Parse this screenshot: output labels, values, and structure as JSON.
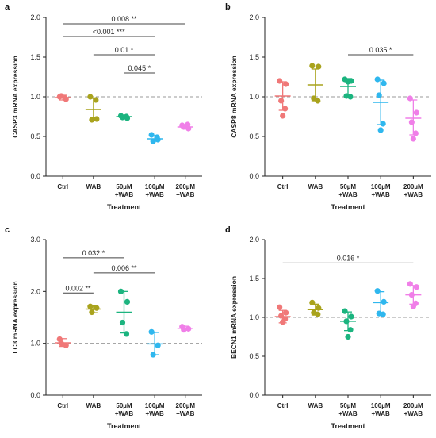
{
  "chart_data": [
    {
      "panel": "a",
      "type": "scatter",
      "ylabel": "CASP3 mRNA expression",
      "xlabel": "Treatment",
      "ylim": [
        0,
        2.0
      ],
      "yticks": [
        "0.0",
        "0.5",
        "1.0",
        "1.5",
        "2.0"
      ],
      "ref_line": 1.0,
      "categories": [
        [
          "Ctrl"
        ],
        [
          "WAB"
        ],
        [
          "50µM",
          "+WAB"
        ],
        [
          "100µM",
          "+WAB"
        ],
        [
          "200µM",
          "+WAB"
        ]
      ],
      "colors": [
        "#f07878",
        "#a9a31d",
        "#1bb47f",
        "#2fb7ee",
        "#f07fe8"
      ],
      "groups": [
        {
          "points": [
            1.0,
            0.97,
            1.01,
            0.98
          ],
          "mean": 0.99,
          "sd_low": 0.96,
          "sd_high": 1.02
        },
        {
          "points": [
            1.0,
            0.72,
            0.71,
            0.96
          ],
          "mean": 0.84,
          "sd_low": 0.7,
          "sd_high": 0.98
        },
        {
          "points": [
            0.76,
            0.73,
            0.74,
            0.75
          ],
          "mean": 0.75,
          "sd_low": 0.73,
          "sd_high": 0.77
        },
        {
          "points": [
            0.52,
            0.46,
            0.44,
            0.49
          ],
          "mean": 0.47,
          "sd_low": 0.44,
          "sd_high": 0.51
        },
        {
          "points": [
            0.64,
            0.6,
            0.62,
            0.65
          ],
          "mean": 0.62,
          "sd_low": 0.6,
          "sd_high": 0.65
        }
      ],
      "comparisons": [
        {
          "from": 0,
          "to": 4,
          "y": 1.92,
          "label": "0.008 **"
        },
        {
          "from": 0,
          "to": 3,
          "y": 1.76,
          "label": "<0.001 ***"
        },
        {
          "from": 1,
          "to": 3,
          "y": 1.53,
          "label": "0.01 *"
        },
        {
          "from": 2,
          "to": 3,
          "y": 1.3,
          "label": "0.045 *"
        }
      ]
    },
    {
      "panel": "b",
      "type": "scatter",
      "ylabel": "CASP8 mRNA expression",
      "xlabel": "Treatment",
      "ylim": [
        0,
        2.0
      ],
      "yticks": [
        "0.0",
        "0.5",
        "1.0",
        "1.5",
        "2.0"
      ],
      "ref_line": 1.0,
      "categories": [
        [
          "Ctrl"
        ],
        [
          "WAB"
        ],
        [
          "50µM",
          "+WAB"
        ],
        [
          "100µM",
          "+WAB"
        ],
        [
          "200µM",
          "+WAB"
        ]
      ],
      "colors": [
        "#f07878",
        "#a9a31d",
        "#1bb47f",
        "#2fb7ee",
        "#f07fe8"
      ],
      "groups": [
        {
          "points": [
            1.2,
            1.16,
            0.95,
            0.85,
            0.76
          ],
          "mean": 1.01,
          "sd_low": 0.83,
          "sd_high": 1.19
        },
        {
          "points": [
            1.39,
            1.38,
            0.98,
            0.95
          ],
          "mean": 1.15,
          "sd_low": 0.95,
          "sd_high": 1.35
        },
        {
          "points": [
            1.22,
            1.2,
            1.01,
            1.0,
            1.19
          ],
          "mean": 1.13,
          "sd_low": 1.02,
          "sd_high": 1.23
        },
        {
          "points": [
            1.22,
            1.17,
            1.02,
            0.66,
            0.58
          ],
          "mean": 0.93,
          "sd_low": 0.65,
          "sd_high": 1.21
        },
        {
          "points": [
            0.98,
            0.8,
            0.68,
            0.54,
            0.47
          ],
          "mean": 0.73,
          "sd_low": 0.52,
          "sd_high": 0.96
        }
      ],
      "comparisons": [
        {
          "from": 2,
          "to": 4,
          "y": 1.53,
          "label": "0.035 *"
        }
      ]
    },
    {
      "panel": "c",
      "type": "scatter",
      "ylabel": "LC3 mRNA expression",
      "xlabel": "Treatment",
      "ylim": [
        0,
        3.0
      ],
      "yticks": [
        "0.0",
        "1.0",
        "2.0",
        "3.0"
      ],
      "ref_line": 1.0,
      "categories": [
        [
          "Ctrl"
        ],
        [
          "WAB"
        ],
        [
          "50µM",
          "+WAB"
        ],
        [
          "100µM",
          "+WAB"
        ],
        [
          "200µM",
          "+WAB"
        ]
      ],
      "colors": [
        "#f07878",
        "#a9a31d",
        "#1bb47f",
        "#2fb7ee",
        "#f07fe8"
      ],
      "groups": [
        {
          "points": [
            1.08,
            0.96,
            1.0
          ],
          "mean": 1.01,
          "sd_low": 0.94,
          "sd_high": 1.09
        },
        {
          "points": [
            1.71,
            1.68,
            1.6
          ],
          "mean": 1.66,
          "sd_low": 1.59,
          "sd_high": 1.72
        },
        {
          "points": [
            2.0,
            1.8,
            1.4,
            1.18
          ],
          "mean": 1.6,
          "sd_low": 1.2,
          "sd_high": 2.0
        },
        {
          "points": [
            1.22,
            0.96,
            0.78
          ],
          "mean": 0.99,
          "sd_low": 0.78,
          "sd_high": 1.21
        },
        {
          "points": [
            1.32,
            1.28,
            1.26
          ],
          "mean": 1.29,
          "sd_low": 1.25,
          "sd_high": 1.33
        }
      ],
      "comparisons": [
        {
          "from": 0,
          "to": 2,
          "y": 2.65,
          "label": "0.032 *"
        },
        {
          "from": 1,
          "to": 3,
          "y": 2.36,
          "label": "0.006 **"
        },
        {
          "from": 0,
          "to": 1,
          "y": 1.97,
          "label": "0.002 **"
        }
      ]
    },
    {
      "panel": "d",
      "type": "scatter",
      "ylabel": "BECN1 mRNA expression",
      "xlabel": "Treatment",
      "ylim": [
        0,
        2.0
      ],
      "yticks": [
        "0.0",
        "0.5",
        "1.0",
        "1.5",
        "2.0"
      ],
      "ref_line": 1.0,
      "categories": [
        [
          "Ctrl"
        ],
        [
          "WAB"
        ],
        [
          "50µM",
          "+WAB"
        ],
        [
          "100µM",
          "+WAB"
        ],
        [
          "200µM",
          "+WAB"
        ]
      ],
      "colors": [
        "#f07878",
        "#a9a31d",
        "#1bb47f",
        "#2fb7ee",
        "#f07fe8"
      ],
      "groups": [
        {
          "points": [
            1.13,
            1.06,
            1.02,
            0.98,
            0.94
          ],
          "mean": 1.01,
          "sd_low": 0.93,
          "sd_high": 1.09
        },
        {
          "points": [
            1.19,
            1.12,
            1.06,
            1.04
          ],
          "mean": 1.1,
          "sd_low": 1.03,
          "sd_high": 1.17
        },
        {
          "points": [
            1.08,
            1.01,
            0.95,
            0.84,
            0.75
          ],
          "mean": 0.95,
          "sd_low": 0.83,
          "sd_high": 1.07
        },
        {
          "points": [
            1.34,
            1.2,
            1.05,
            1.04
          ],
          "mean": 1.19,
          "sd_low": 1.05,
          "sd_high": 1.33
        },
        {
          "points": [
            1.43,
            1.39,
            1.29,
            1.18,
            1.14
          ],
          "mean": 1.29,
          "sd_low": 1.17,
          "sd_high": 1.41
        }
      ],
      "comparisons": [
        {
          "from": 0,
          "to": 4,
          "y": 1.7,
          "label": "0.016 *"
        }
      ]
    }
  ]
}
